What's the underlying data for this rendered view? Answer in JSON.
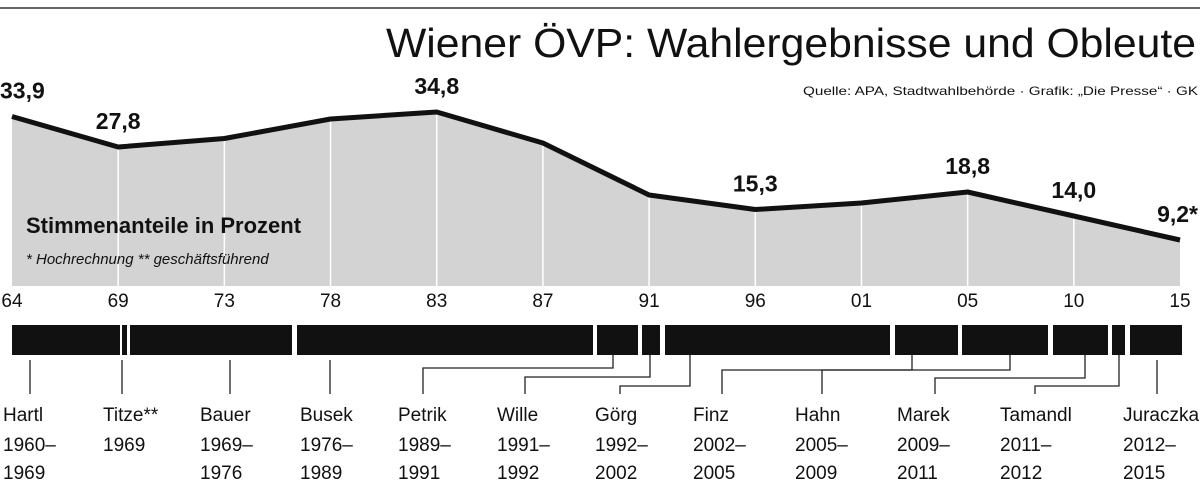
{
  "chart_data": {
    "type": "area",
    "title": "Wiener ÖVP: Wahlergebnisse und Obleute",
    "source": "Quelle: APA, Stadtwahlbehörde · Grafik: „Die Presse“ · GK",
    "subtitle": "Stimmenanteile in Prozent",
    "note": "* Hochrechnung  ** geschäftsführend",
    "categories": [
      "64",
      "69",
      "73",
      "78",
      "83",
      "87",
      "91",
      "96",
      "01",
      "05",
      "10",
      "15"
    ],
    "values": [
      33.9,
      27.8,
      29.5,
      33.4,
      34.8,
      28.6,
      18.2,
      15.3,
      16.6,
      18.8,
      14.0,
      9.2
    ],
    "value_labels": [
      "33,9",
      "27,8",
      null,
      null,
      "34,8",
      null,
      null,
      "15,3",
      null,
      "18,8",
      "14,0",
      "9,2*"
    ],
    "color": "#d3d3d3",
    "ylim": [
      0,
      40
    ]
  },
  "leaders": [
    {
      "name": "Hartl",
      "term": [
        "1960–",
        "1969"
      ]
    },
    {
      "name": "Titze**",
      "term": [
        "1969"
      ]
    },
    {
      "name": "Bauer",
      "term": [
        "1969–",
        "1976"
      ]
    },
    {
      "name": "Busek",
      "term": [
        "1976–",
        "1989"
      ]
    },
    {
      "name": "Petrik",
      "term": [
        "1989–",
        "1991"
      ]
    },
    {
      "name": "Wille",
      "term": [
        "1991–",
        "1992"
      ]
    },
    {
      "name": "Görg",
      "term": [
        "1992–",
        "2002"
      ]
    },
    {
      "name": "Finz",
      "term": [
        "2002–",
        "2005"
      ]
    },
    {
      "name": "Hahn",
      "term": [
        "2005–",
        "2009"
      ]
    },
    {
      "name": "Marek",
      "term": [
        "2009–",
        "2011"
      ]
    },
    {
      "name": "Tamandl",
      "term": [
        "2011–",
        "2012"
      ]
    },
    {
      "name": "Juraczka",
      "term": [
        "2012–",
        "2015"
      ]
    }
  ]
}
